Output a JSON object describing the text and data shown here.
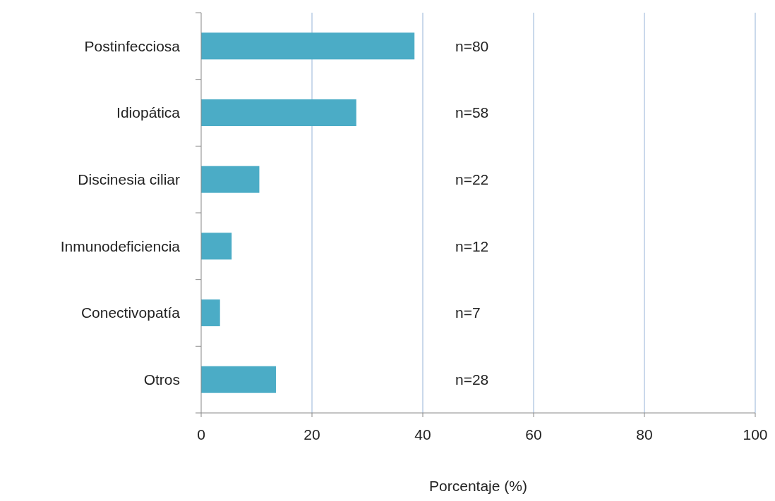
{
  "chart_data": {
    "type": "bar",
    "orientation": "horizontal",
    "xlabel": "Porcentaje (%)",
    "categories": [
      "Postinfecciosa",
      "Idiopática",
      "Discinesia ciliar",
      "Inmunodeficiencia",
      "Conectivopatía",
      "Otros"
    ],
    "values": [
      38.5,
      28,
      10.5,
      5.5,
      3.4,
      13.5
    ],
    "color": "#4bacc6",
    "xlim": [
      0,
      100
    ],
    "xticks": [
      0,
      20,
      40,
      60,
      80,
      100
    ],
    "grid": "x",
    "annotations": [
      "n=80",
      "n=58",
      "n=22",
      "n=12",
      "n=7",
      "n=28"
    ]
  }
}
